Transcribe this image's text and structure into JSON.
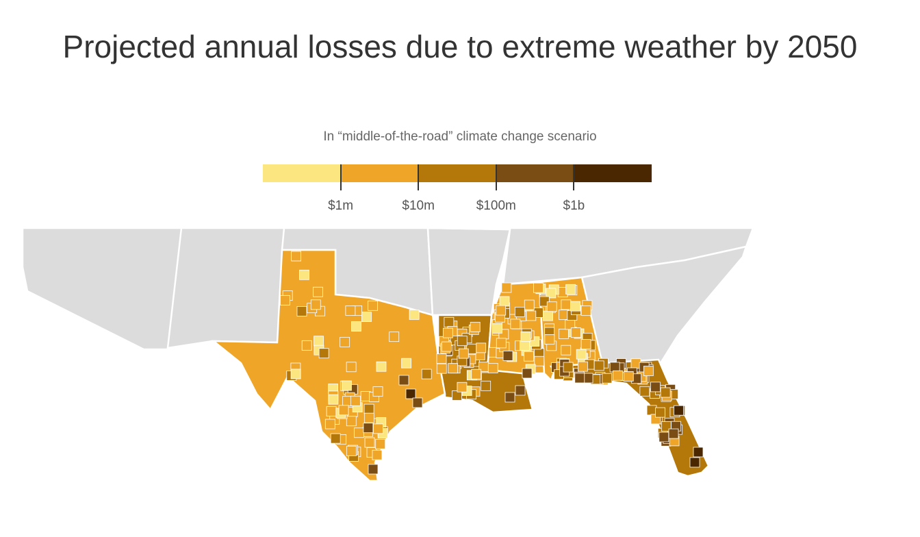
{
  "chart_data": {
    "type": "choropleth-map",
    "title": "Projected annual losses due to extreme weather by 2050",
    "subtitle": "In “middle-of-the-road” climate change scenario",
    "legend": {
      "bins": [
        {
          "range": "< $1m",
          "color": "#fce680"
        },
        {
          "range": "$1m–$10m",
          "color": "#efa628"
        },
        {
          "range": "$10m–$100m",
          "color": "#b4770a"
        },
        {
          "range": "$100m–$1b",
          "color": "#7a4d14"
        },
        {
          "range": "> $1b",
          "color": "#4a2700"
        }
      ],
      "tick_labels": [
        "$1m",
        "$10m",
        "$100m",
        "$1b"
      ]
    },
    "regions_shown": [
      "Texas",
      "Louisiana",
      "Mississippi",
      "Alabama",
      "Florida"
    ],
    "no_data_color": "#dcdcdc"
  }
}
